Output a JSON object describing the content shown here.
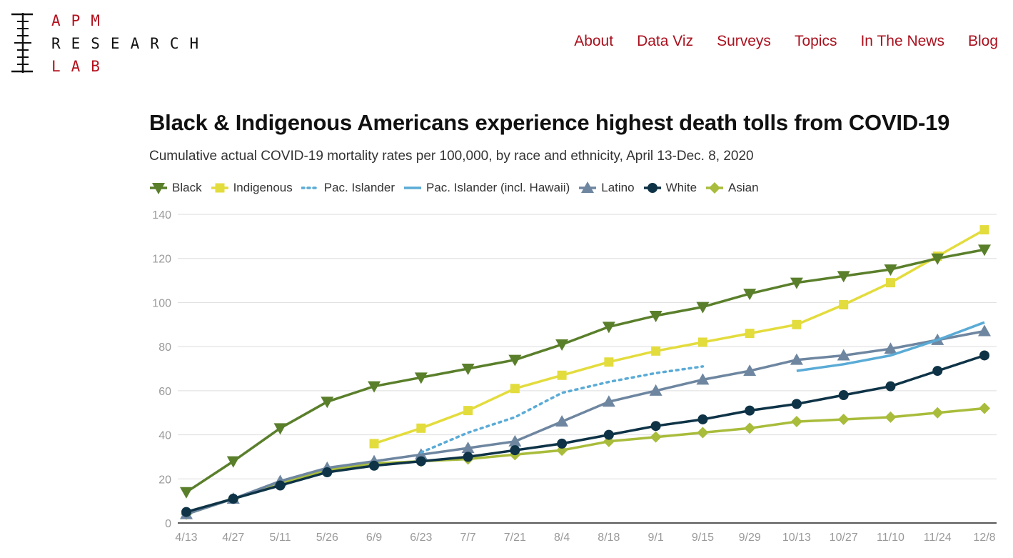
{
  "logo": {
    "line1": "APM",
    "line2": "RESEARCH",
    "line3": "LAB"
  },
  "nav": {
    "items": [
      "About",
      "Data Viz",
      "Surveys",
      "Topics",
      "In The News",
      "Blog"
    ]
  },
  "colors": {
    "brand_red": "#a9111e",
    "Black": "#5a7f2b",
    "Indigenous": "#e3dc3d",
    "Pac. Islander": "#5aabd6",
    "Pac. Islander (incl. Hawaii)": "#5aabd6",
    "Latino": "#6e86a0",
    "White": "#0e3347",
    "Asian": "#a9bc3b"
  },
  "chart_data": {
    "type": "line",
    "title": "Black & Indigenous Americans experience highest death tolls from COVID-19",
    "subtitle": "Cumulative actual COVID-19 mortality rates per 100,000, by race and ethnicity, April 13-Dec. 8, 2020",
    "categories": [
      "4/13",
      "4/27",
      "5/11",
      "5/26",
      "6/9",
      "6/23",
      "7/7",
      "7/21",
      "8/4",
      "8/18",
      "9/1",
      "9/15",
      "9/29",
      "10/13",
      "10/27",
      "11/10",
      "11/24",
      "12/8"
    ],
    "ylim": [
      0,
      140
    ],
    "yticks": [
      0,
      20,
      40,
      60,
      80,
      100,
      120,
      140
    ],
    "grid": true,
    "legend_position": "top-left",
    "series": [
      {
        "name": "Black",
        "marker": "triangle-down",
        "dashed": false,
        "values": [
          14,
          28,
          43,
          55,
          62,
          66,
          70,
          74,
          81,
          89,
          94,
          98,
          104,
          109,
          112,
          115,
          120,
          124
        ]
      },
      {
        "name": "Indigenous",
        "marker": "square",
        "dashed": false,
        "values": [
          null,
          null,
          null,
          null,
          36,
          43,
          51,
          61,
          67,
          73,
          78,
          82,
          86,
          90,
          99,
          109,
          121,
          133
        ]
      },
      {
        "name": "Pac. Islander",
        "marker": "none",
        "dashed": true,
        "values": [
          null,
          null,
          null,
          null,
          null,
          32,
          41,
          48,
          59,
          64,
          68,
          71,
          null,
          null,
          null,
          null,
          null,
          null
        ]
      },
      {
        "name": "Pac. Islander (incl. Hawaii)",
        "marker": "none",
        "dashed": false,
        "values": [
          null,
          null,
          null,
          null,
          null,
          null,
          null,
          null,
          null,
          null,
          null,
          null,
          null,
          69,
          72,
          76,
          83,
          91
        ]
      },
      {
        "name": "Latino",
        "marker": "triangle-up",
        "dashed": false,
        "values": [
          4,
          11,
          19,
          25,
          28,
          31,
          34,
          37,
          46,
          55,
          60,
          65,
          69,
          74,
          76,
          79,
          83,
          87
        ]
      },
      {
        "name": "White",
        "marker": "circle",
        "dashed": false,
        "values": [
          5,
          11,
          17,
          23,
          26,
          28,
          30,
          33,
          36,
          40,
          44,
          47,
          51,
          54,
          58,
          62,
          69,
          76
        ]
      },
      {
        "name": "Asian",
        "marker": "diamond",
        "dashed": false,
        "values": [
          4,
          11,
          18,
          24,
          27,
          28,
          29,
          31,
          33,
          37,
          39,
          41,
          43,
          46,
          47,
          48,
          50,
          52
        ]
      }
    ]
  }
}
